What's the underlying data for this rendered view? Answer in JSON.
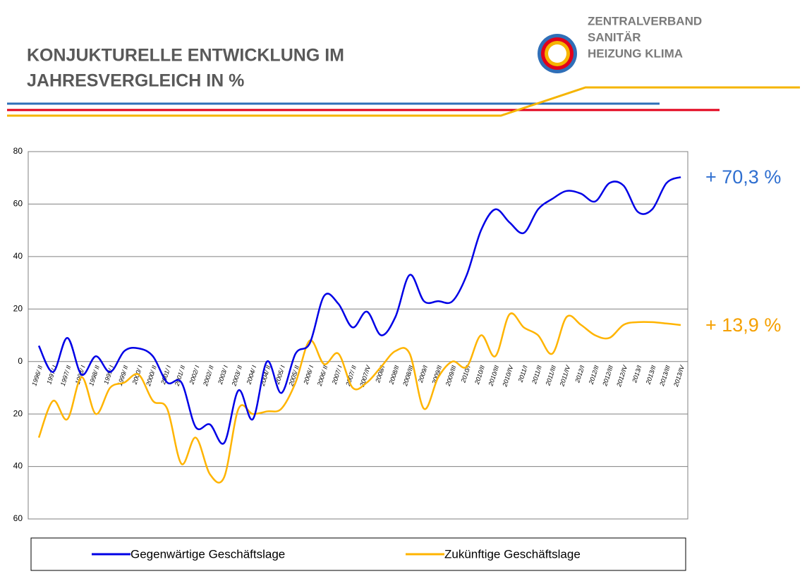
{
  "logo": [
    "ZENTRALVERBAND",
    "SANITÄR",
    "HEIZUNG KLIMA"
  ],
  "chart_data": {
    "type": "line",
    "title_lines": [
      "KONJUKTURELLE ENTWICKLUNG IM",
      "JAHRESVERGLEICH IN %"
    ],
    "categories": [
      "1996/ II",
      "1997/ I",
      "1997/ II",
      "1998/ I",
      "1998/ II",
      "1999/ I",
      "1999/ II",
      "2000/ I",
      "2000/ II",
      "2001/ I",
      "2001/ II",
      "2002/ I",
      "2002/ II",
      "2003/ I",
      "2003/ II",
      "2004/ I",
      "2004/ II",
      "2005/ I",
      "2005/ II",
      "2006/ I",
      "2006/ II",
      "2007/ I",
      "2007/ II",
      "2007/IV",
      "2008/I",
      "2008/II",
      "2008/III",
      "2009/I",
      "2009/II",
      "2009/III",
      "2010/I",
      "2010/II",
      "2010/III",
      "2010/IV",
      "2011/I",
      "2011/II",
      "2011/III",
      "2011/IV",
      "2012/I",
      "2012/II",
      "2012/III",
      "2012/IV",
      "2013/I",
      "2013/II",
      "2013/III",
      "2013/IV"
    ],
    "series": [
      {
        "name": "Gegenwärtige Geschäftslage",
        "color": "#0000e6",
        "values": [
          6,
          -4,
          9,
          -5,
          2,
          -4,
          4,
          5,
          2,
          -8,
          -8,
          -25,
          -24,
          -31,
          -11,
          -22,
          0,
          -12,
          3,
          7,
          25,
          22,
          13,
          19,
          10,
          17,
          33,
          23,
          23,
          23,
          33,
          50,
          58,
          53,
          49,
          58,
          62,
          65,
          64,
          61,
          68,
          67,
          57,
          58,
          68,
          70.3
        ]
      },
      {
        "name": "Zukünftige Geschäftslage",
        "color": "#ffb400",
        "values": [
          -29,
          -15,
          -22,
          -6,
          -20,
          -10,
          -8,
          -5,
          -15,
          -18,
          -39,
          -29,
          -43,
          -44,
          -18,
          -20,
          -19,
          -18,
          -8,
          8,
          -1,
          3,
          -10,
          -8,
          -2,
          4,
          3,
          -18,
          -6,
          0,
          -2,
          10,
          2,
          18,
          13,
          10,
          3,
          17,
          14,
          10,
          9,
          14,
          15,
          15,
          14.5,
          13.9
        ]
      }
    ],
    "annotations": [
      "+ 70,3 %",
      "+ 13,9 %"
    ],
    "annotation_colors": [
      "#2f6fd0",
      "#f5a000"
    ],
    "ylim": [
      -60,
      80
    ],
    "yticks": [
      {
        "value": -60,
        "label": "60"
      },
      {
        "value": -40,
        "label": "40"
      },
      {
        "value": -20,
        "label": "20"
      },
      0,
      20,
      40,
      60,
      80
    ],
    "grid": true
  }
}
